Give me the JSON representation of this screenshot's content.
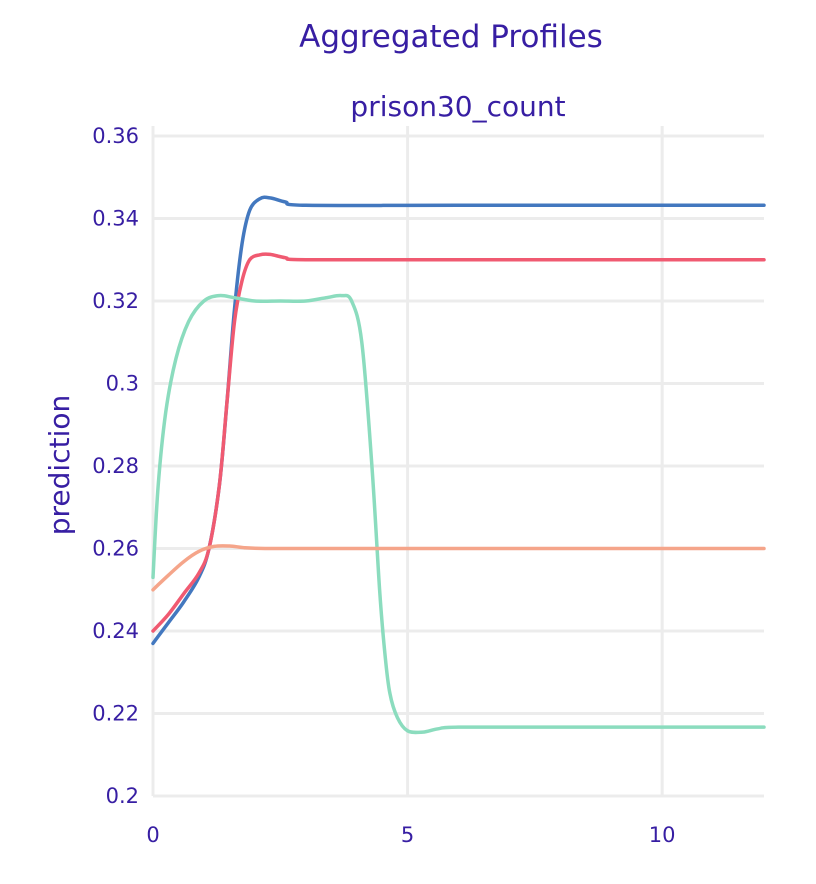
{
  "chart_data": {
    "type": "line",
    "title": "Aggregated Profiles",
    "subtitle": "prison30_count",
    "ylabel": "prediction",
    "xlabel": "",
    "xlim": [
      0,
      12
    ],
    "ylim": [
      0.2,
      0.36
    ],
    "x_ticks": [
      "0",
      "5",
      "10"
    ],
    "x_tick_values": [
      0,
      5,
      10
    ],
    "y_ticks": [
      "0.2",
      "0.22",
      "0.24",
      "0.26",
      "0.28",
      "0.3",
      "0.32",
      "0.34",
      "0.36"
    ],
    "y_tick_values": [
      0.2,
      0.22,
      0.24,
      0.26,
      0.28,
      0.3,
      0.32,
      0.34,
      0.36
    ],
    "grid": true,
    "legend": "none",
    "series": [
      {
        "color": "#4378bf",
        "x": [
          0,
          0.3,
          0.6,
          0.9,
          1.1,
          1.3,
          1.45,
          1.6,
          1.75,
          1.9,
          2.1,
          2.3,
          2.6,
          3,
          6,
          12
        ],
        "y": [
          0.237,
          0.242,
          0.247,
          0.253,
          0.26,
          0.275,
          0.295,
          0.318,
          0.334,
          0.342,
          0.3448,
          0.345,
          0.344,
          0.3432,
          0.3432,
          0.3432
        ]
      },
      {
        "color": "#f05a71",
        "x": [
          0,
          0.3,
          0.6,
          0.9,
          1.1,
          1.3,
          1.45,
          1.6,
          1.75,
          1.9,
          2.1,
          2.3,
          2.6,
          3,
          6,
          12
        ],
        "y": [
          0.24,
          0.244,
          0.249,
          0.254,
          0.26,
          0.275,
          0.295,
          0.315,
          0.325,
          0.33,
          0.3312,
          0.3313,
          0.3305,
          0.33,
          0.33,
          0.33
        ]
      },
      {
        "color": "#8bdcbe",
        "x": [
          0,
          0.1,
          0.25,
          0.45,
          0.7,
          1.0,
          1.3,
          1.6,
          2.0,
          2.5,
          3.0,
          3.4,
          3.7,
          3.9,
          4.1,
          4.3,
          4.45,
          4.55,
          4.65,
          4.8,
          5.0,
          5.3,
          5.6,
          6,
          8,
          12
        ],
        "y": [
          0.253,
          0.275,
          0.293,
          0.306,
          0.315,
          0.32,
          0.3213,
          0.3208,
          0.32,
          0.32,
          0.32,
          0.3208,
          0.3213,
          0.32,
          0.31,
          0.28,
          0.25,
          0.235,
          0.225,
          0.219,
          0.2158,
          0.2155,
          0.2163,
          0.2167,
          0.2167,
          0.2167
        ]
      },
      {
        "color": "#f5a58a",
        "x": [
          0,
          0.3,
          0.6,
          0.9,
          1.2,
          1.5,
          1.8,
          2.2,
          3,
          6,
          12
        ],
        "y": [
          0.25,
          0.2535,
          0.2568,
          0.2593,
          0.2605,
          0.2606,
          0.2602,
          0.26,
          0.26,
          0.26,
          0.26
        ]
      }
    ]
  }
}
